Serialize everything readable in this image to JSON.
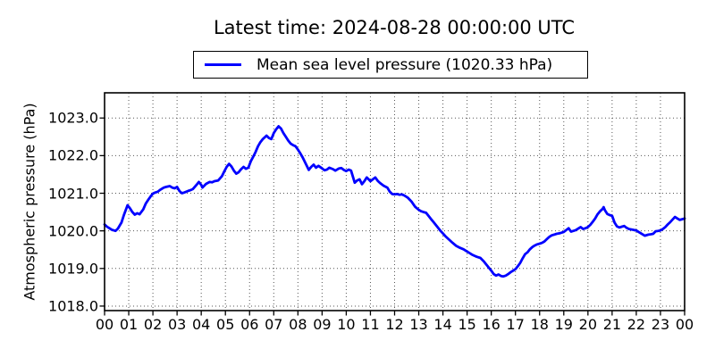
{
  "title": "Latest time: 2024-08-28 00:00:00 UTC",
  "colors": {
    "line": "#0000ff",
    "grid": "#555555",
    "frame": "#000000",
    "tick": "#000000",
    "background": "#ffffff"
  },
  "chart_data": {
    "type": "line",
    "title": "Latest time: 2024-08-28 00:00:00 UTC",
    "xlabel": "",
    "ylabel": "Atmospheric pressure (hPa)",
    "xlim": [
      0,
      24
    ],
    "ylim": [
      1017.88,
      1023.67
    ],
    "grid": true,
    "grid_style": "dotted",
    "x_tick_labels": [
      "00",
      "01",
      "02",
      "03",
      "04",
      "05",
      "06",
      "07",
      "08",
      "09",
      "10",
      "11",
      "12",
      "13",
      "14",
      "15",
      "16",
      "17",
      "18",
      "19",
      "20",
      "21",
      "22",
      "23",
      "00"
    ],
    "y_tick_values": [
      1018.0,
      1019.0,
      1020.0,
      1021.0,
      1022.0,
      1023.0
    ],
    "y_tick_labels": [
      "1018.0",
      "1019.0",
      "1020.0",
      "1021.0",
      "1022.0",
      "1023.0"
    ],
    "legend": {
      "label": "Mean sea level pressure (1020.33 hPa)",
      "position": "above axes, centered"
    },
    "series": [
      {
        "name": "Mean sea level pressure",
        "units": "hPa",
        "latest_value": 1020.33,
        "color": "#0000ff",
        "points": [
          [
            0.0,
            1020.17
          ],
          [
            0.1,
            1020.11
          ],
          [
            0.2,
            1020.07
          ],
          [
            0.3,
            1020.03
          ],
          [
            0.45,
            1020.0
          ],
          [
            0.55,
            1020.06
          ],
          [
            0.7,
            1020.22
          ],
          [
            0.8,
            1020.42
          ],
          [
            0.95,
            1020.68
          ],
          [
            1.05,
            1020.6
          ],
          [
            1.15,
            1020.5
          ],
          [
            1.25,
            1020.43
          ],
          [
            1.35,
            1020.47
          ],
          [
            1.45,
            1020.44
          ],
          [
            1.6,
            1020.57
          ],
          [
            1.7,
            1020.72
          ],
          [
            1.8,
            1020.82
          ],
          [
            1.9,
            1020.91
          ],
          [
            2.0,
            1020.99
          ],
          [
            2.1,
            1021.02
          ],
          [
            2.2,
            1021.04
          ],
          [
            2.3,
            1021.09
          ],
          [
            2.45,
            1021.15
          ],
          [
            2.55,
            1021.17
          ],
          [
            2.7,
            1021.19
          ],
          [
            2.8,
            1021.15
          ],
          [
            2.9,
            1021.13
          ],
          [
            3.0,
            1021.17
          ],
          [
            3.1,
            1021.06
          ],
          [
            3.2,
            1021.0
          ],
          [
            3.3,
            1021.02
          ],
          [
            3.45,
            1021.06
          ],
          [
            3.55,
            1021.08
          ],
          [
            3.65,
            1021.11
          ],
          [
            3.8,
            1021.22
          ],
          [
            3.9,
            1021.3
          ],
          [
            4.0,
            1021.22
          ],
          [
            4.05,
            1021.15
          ],
          [
            4.2,
            1021.25
          ],
          [
            4.35,
            1021.3
          ],
          [
            4.45,
            1021.29
          ],
          [
            4.55,
            1021.32
          ],
          [
            4.7,
            1021.34
          ],
          [
            4.85,
            1021.45
          ],
          [
            4.95,
            1021.58
          ],
          [
            5.05,
            1021.7
          ],
          [
            5.15,
            1021.78
          ],
          [
            5.25,
            1021.71
          ],
          [
            5.35,
            1021.6
          ],
          [
            5.45,
            1021.52
          ],
          [
            5.55,
            1021.56
          ],
          [
            5.65,
            1021.64
          ],
          [
            5.75,
            1021.7
          ],
          [
            5.85,
            1021.65
          ],
          [
            5.95,
            1021.68
          ],
          [
            6.05,
            1021.85
          ],
          [
            6.15,
            1021.97
          ],
          [
            6.25,
            1022.1
          ],
          [
            6.35,
            1022.25
          ],
          [
            6.45,
            1022.36
          ],
          [
            6.55,
            1022.44
          ],
          [
            6.7,
            1022.53
          ],
          [
            6.8,
            1022.47
          ],
          [
            6.9,
            1022.44
          ],
          [
            7.0,
            1022.6
          ],
          [
            7.1,
            1022.7
          ],
          [
            7.2,
            1022.78
          ],
          [
            7.3,
            1022.72
          ],
          [
            7.4,
            1022.6
          ],
          [
            7.5,
            1022.5
          ],
          [
            7.6,
            1022.4
          ],
          [
            7.7,
            1022.32
          ],
          [
            7.8,
            1022.28
          ],
          [
            7.9,
            1022.25
          ],
          [
            8.0,
            1022.16
          ],
          [
            8.1,
            1022.06
          ],
          [
            8.2,
            1021.95
          ],
          [
            8.3,
            1021.82
          ],
          [
            8.45,
            1021.62
          ],
          [
            8.55,
            1021.7
          ],
          [
            8.65,
            1021.76
          ],
          [
            8.75,
            1021.68
          ],
          [
            8.85,
            1021.73
          ],
          [
            9.0,
            1021.66
          ],
          [
            9.1,
            1021.61
          ],
          [
            9.2,
            1021.63
          ],
          [
            9.3,
            1021.68
          ],
          [
            9.45,
            1021.64
          ],
          [
            9.55,
            1021.6
          ],
          [
            9.7,
            1021.66
          ],
          [
            9.8,
            1021.67
          ],
          [
            9.9,
            1021.62
          ],
          [
            10.0,
            1021.59
          ],
          [
            10.1,
            1021.63
          ],
          [
            10.2,
            1021.6
          ],
          [
            10.35,
            1021.28
          ],
          [
            10.45,
            1021.34
          ],
          [
            10.55,
            1021.37
          ],
          [
            10.65,
            1021.24
          ],
          [
            10.75,
            1021.32
          ],
          [
            10.85,
            1021.42
          ],
          [
            11.0,
            1021.32
          ],
          [
            11.1,
            1021.37
          ],
          [
            11.2,
            1021.42
          ],
          [
            11.3,
            1021.33
          ],
          [
            11.4,
            1021.27
          ],
          [
            11.55,
            1021.2
          ],
          [
            11.7,
            1021.15
          ],
          [
            11.8,
            1021.04
          ],
          [
            11.9,
            1020.98
          ],
          [
            12.0,
            1020.97
          ],
          [
            12.1,
            1020.98
          ],
          [
            12.2,
            1020.96
          ],
          [
            12.3,
            1020.97
          ],
          [
            12.4,
            1020.94
          ],
          [
            12.55,
            1020.88
          ],
          [
            12.7,
            1020.78
          ],
          [
            12.85,
            1020.64
          ],
          [
            13.0,
            1020.56
          ],
          [
            13.1,
            1020.52
          ],
          [
            13.2,
            1020.5
          ],
          [
            13.3,
            1020.48
          ],
          [
            13.4,
            1020.4
          ],
          [
            13.5,
            1020.32
          ],
          [
            13.6,
            1020.24
          ],
          [
            13.7,
            1020.16
          ],
          [
            13.8,
            1020.08
          ],
          [
            13.9,
            1020.0
          ],
          [
            14.0,
            1019.93
          ],
          [
            14.1,
            1019.86
          ],
          [
            14.2,
            1019.8
          ],
          [
            14.3,
            1019.74
          ],
          [
            14.4,
            1019.68
          ],
          [
            14.55,
            1019.6
          ],
          [
            14.7,
            1019.55
          ],
          [
            14.85,
            1019.51
          ],
          [
            15.0,
            1019.45
          ],
          [
            15.1,
            1019.41
          ],
          [
            15.2,
            1019.37
          ],
          [
            15.3,
            1019.34
          ],
          [
            15.4,
            1019.31
          ],
          [
            15.55,
            1019.28
          ],
          [
            15.7,
            1019.18
          ],
          [
            15.8,
            1019.1
          ],
          [
            15.9,
            1019.02
          ],
          [
            16.0,
            1018.94
          ],
          [
            16.1,
            1018.85
          ],
          [
            16.2,
            1018.81
          ],
          [
            16.3,
            1018.84
          ],
          [
            16.4,
            1018.8
          ],
          [
            16.5,
            1018.79
          ],
          [
            16.6,
            1018.81
          ],
          [
            16.7,
            1018.85
          ],
          [
            16.8,
            1018.9
          ],
          [
            16.9,
            1018.94
          ],
          [
            17.0,
            1018.98
          ],
          [
            17.1,
            1019.06
          ],
          [
            17.2,
            1019.15
          ],
          [
            17.3,
            1019.27
          ],
          [
            17.4,
            1019.38
          ],
          [
            17.5,
            1019.43
          ],
          [
            17.6,
            1019.51
          ],
          [
            17.7,
            1019.57
          ],
          [
            17.8,
            1019.61
          ],
          [
            17.9,
            1019.64
          ],
          [
            18.0,
            1019.66
          ],
          [
            18.1,
            1019.68
          ],
          [
            18.2,
            1019.72
          ],
          [
            18.3,
            1019.78
          ],
          [
            18.4,
            1019.84
          ],
          [
            18.5,
            1019.88
          ],
          [
            18.6,
            1019.9
          ],
          [
            18.7,
            1019.92
          ],
          [
            18.85,
            1019.94
          ],
          [
            19.0,
            1019.97
          ],
          [
            19.1,
            1020.02
          ],
          [
            19.2,
            1020.07
          ],
          [
            19.3,
            1019.98
          ],
          [
            19.4,
            1020.0
          ],
          [
            19.5,
            1020.02
          ],
          [
            19.6,
            1020.06
          ],
          [
            19.7,
            1020.1
          ],
          [
            19.8,
            1020.05
          ],
          [
            19.9,
            1020.07
          ],
          [
            20.0,
            1020.1
          ],
          [
            20.1,
            1020.16
          ],
          [
            20.2,
            1020.24
          ],
          [
            20.3,
            1020.33
          ],
          [
            20.4,
            1020.44
          ],
          [
            20.5,
            1020.52
          ],
          [
            20.6,
            1020.58
          ],
          [
            20.65,
            1020.63
          ],
          [
            20.7,
            1020.55
          ],
          [
            20.8,
            1020.45
          ],
          [
            20.9,
            1020.42
          ],
          [
            21.0,
            1020.4
          ],
          [
            21.1,
            1020.22
          ],
          [
            21.2,
            1020.12
          ],
          [
            21.3,
            1020.09
          ],
          [
            21.4,
            1020.11
          ],
          [
            21.5,
            1020.13
          ],
          [
            21.6,
            1020.08
          ],
          [
            21.7,
            1020.05
          ],
          [
            21.85,
            1020.03
          ],
          [
            22.0,
            1020.01
          ],
          [
            22.1,
            1019.97
          ],
          [
            22.2,
            1019.93
          ],
          [
            22.35,
            1019.87
          ],
          [
            22.5,
            1019.9
          ],
          [
            22.6,
            1019.91
          ],
          [
            22.7,
            1019.92
          ],
          [
            22.8,
            1019.99
          ],
          [
            22.9,
            1020.0
          ],
          [
            23.0,
            1020.01
          ],
          [
            23.1,
            1020.05
          ],
          [
            23.2,
            1020.1
          ],
          [
            23.3,
            1020.17
          ],
          [
            23.4,
            1020.23
          ],
          [
            23.5,
            1020.3
          ],
          [
            23.6,
            1020.37
          ],
          [
            23.7,
            1020.33
          ],
          [
            23.8,
            1020.29
          ],
          [
            23.9,
            1020.31
          ],
          [
            24.0,
            1020.33
          ]
        ]
      }
    ]
  }
}
